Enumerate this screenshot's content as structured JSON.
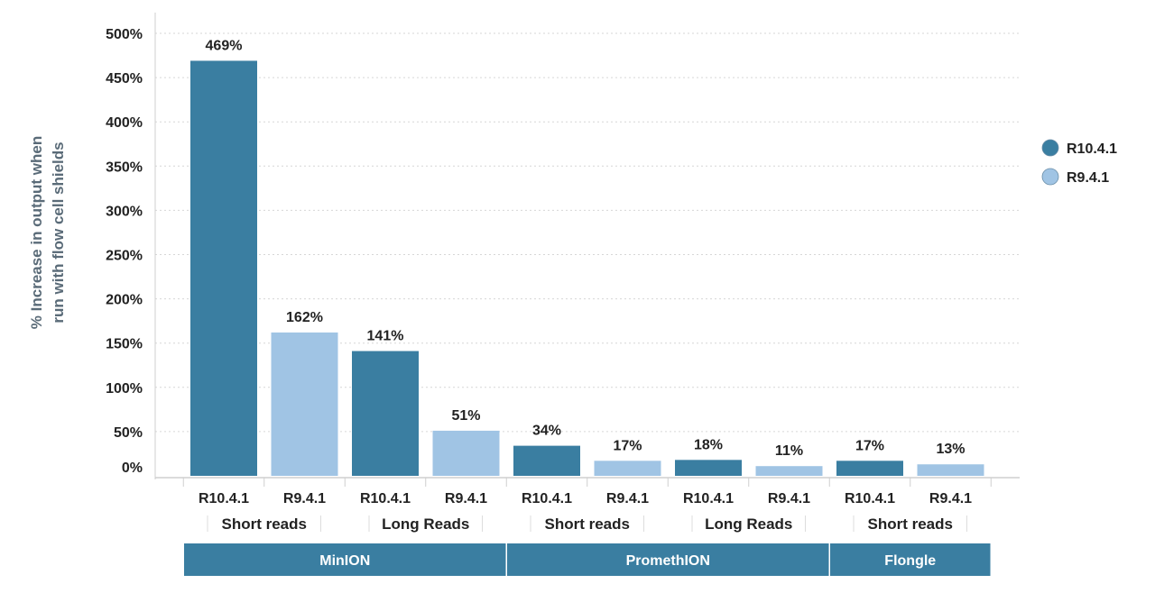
{
  "chart_data": {
    "type": "bar",
    "ylabel_lines": [
      "% Increase in output when",
      "run with flow cell shields"
    ],
    "ylim": [
      0,
      500
    ],
    "yticks": [
      0,
      50,
      100,
      150,
      200,
      250,
      300,
      350,
      400,
      450,
      500
    ],
    "ytick_labels": [
      "0%",
      "50%",
      "100%",
      "150%",
      "200%",
      "250%",
      "300%",
      "350%",
      "400%",
      "450%",
      "500%"
    ],
    "grid": true,
    "legend_position": "right",
    "series": [
      {
        "name": "R10.4.1",
        "color": "#3a7ea1"
      },
      {
        "name": "R9.4.1",
        "color": "#a0c4e4"
      }
    ],
    "bars": [
      {
        "category": "R10.4.1",
        "series": "R10.4.1",
        "value": 469,
        "label": "469%"
      },
      {
        "category": "R9.4.1",
        "series": "R9.4.1",
        "value": 162,
        "label": "162%"
      },
      {
        "category": "R10.4.1",
        "series": "R10.4.1",
        "value": 141,
        "label": "141%"
      },
      {
        "category": "R9.4.1",
        "series": "R9.4.1",
        "value": 51,
        "label": "51%"
      },
      {
        "category": "R10.4.1",
        "series": "R10.4.1",
        "value": 34,
        "label": "34%"
      },
      {
        "category": "R9.4.1",
        "series": "R9.4.1",
        "value": 17,
        "label": "17%"
      },
      {
        "category": "R10.4.1",
        "series": "R10.4.1",
        "value": 18,
        "label": "18%"
      },
      {
        "category": "R9.4.1",
        "series": "R9.4.1",
        "value": 11,
        "label": "11%"
      },
      {
        "category": "R10.4.1",
        "series": "R10.4.1",
        "value": 17,
        "label": "17%"
      },
      {
        "category": "R9.4.1",
        "series": "R9.4.1",
        "value": 13,
        "label": "13%"
      }
    ],
    "read_groups": [
      {
        "label": "Short reads",
        "bars": [
          0,
          1
        ]
      },
      {
        "label": "Long Reads",
        "bars": [
          2,
          3
        ]
      },
      {
        "label": "Short reads",
        "bars": [
          4,
          5
        ]
      },
      {
        "label": "Long Reads",
        "bars": [
          6,
          7
        ]
      },
      {
        "label": "Short reads",
        "bars": [
          8,
          9
        ]
      }
    ],
    "devices": [
      {
        "label": "MinION",
        "bars": [
          0,
          3
        ]
      },
      {
        "label": "PromethION",
        "bars": [
          4,
          7
        ]
      },
      {
        "label": "Flongle",
        "bars": [
          8,
          9
        ]
      }
    ],
    "device_color": "#3a7ea1"
  }
}
